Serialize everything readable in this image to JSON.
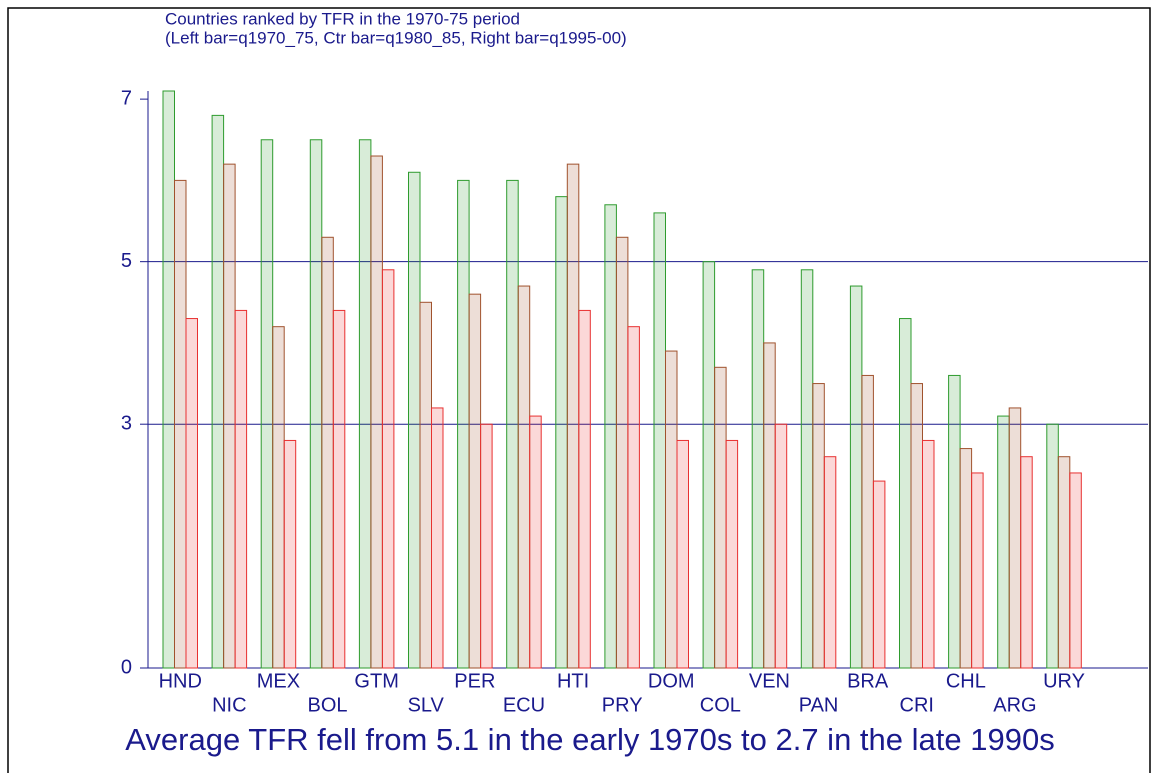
{
  "chart_data": {
    "type": "bar",
    "title": "Countries ranked by TFR in the 1970-75 period",
    "subtitle": "(Left bar=q1970_75, Ctr bar=q1980_85, Right bar=q1995-00)",
    "note": "Average TFR fell from 5.1 in the early 1970s to 2.7 in the late 1990s",
    "categories": [
      "HND",
      "NIC",
      "MEX",
      "BOL",
      "GTM",
      "SLV",
      "PER",
      "ECU",
      "HTI",
      "PRY",
      "DOM",
      "COL",
      "VEN",
      "PAN",
      "BRA",
      "CRI",
      "CHL",
      "ARG",
      "URY"
    ],
    "series": [
      {
        "color": "#2e9b2e",
        "values": [
          7.1,
          6.8,
          6.5,
          6.5,
          6.5,
          6.1,
          6.0,
          6.0,
          5.8,
          5.7,
          5.6,
          5.0,
          4.9,
          4.9,
          4.7,
          4.3,
          3.6,
          3.1,
          3.0
        ]
      },
      {
        "color": "#a0522d",
        "values": [
          6.0,
          6.2,
          4.2,
          5.3,
          6.3,
          4.5,
          4.6,
          4.7,
          6.2,
          5.3,
          3.9,
          3.7,
          4.0,
          3.5,
          3.6,
          3.5,
          2.7,
          3.2,
          2.6
        ]
      },
      {
        "color": "#e83030",
        "values": [
          4.3,
          4.4,
          2.8,
          4.4,
          4.9,
          3.2,
          3.0,
          3.1,
          4.4,
          4.2,
          2.8,
          2.8,
          3.0,
          2.6,
          2.3,
          2.8,
          2.4,
          2.6,
          2.4
        ]
      }
    ],
    "ylim": [
      0,
      7.1
    ],
    "yticks": [
      0,
      3,
      5,
      7
    ],
    "grid": true
  }
}
